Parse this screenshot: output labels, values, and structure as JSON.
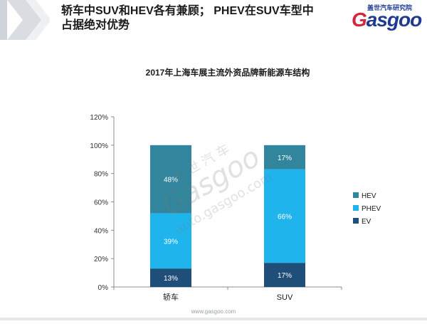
{
  "header": {
    "title": "轿车中SUV和HEV各有兼顾；  PHEV在SUV车型中占据绝对优势",
    "logo_cn": "盖世汽车研究院",
    "logo_g": "G",
    "logo_rest": "asgoo"
  },
  "watermark": {
    "cn": "盖 世 汽 车",
    "brand": "Gasgoo",
    "url": "auto.gasgoo.com"
  },
  "footer": {
    "url": "www.gasgoo.com"
  },
  "colors": {
    "hev": "#31859c",
    "phev": "#1fb4ec",
    "ev": "#1f4e79"
  },
  "chart_data": {
    "type": "bar",
    "stacked": true,
    "title": "2017年上海车展主流外资品牌新能源车结构",
    "categories": [
      "轿车",
      "SUV"
    ],
    "series": [
      {
        "name": "EV",
        "values": [
          13,
          17
        ],
        "labels": [
          "13%",
          "17%"
        ]
      },
      {
        "name": "PHEV",
        "values": [
          39,
          66
        ],
        "labels": [
          "39%",
          "66%"
        ]
      },
      {
        "name": "HEV",
        "values": [
          48,
          17
        ],
        "labels": [
          "48%",
          "17%"
        ]
      }
    ],
    "ylim": [
      0,
      120
    ],
    "yticks": [
      "0%",
      "20%",
      "40%",
      "60%",
      "80%",
      "100%",
      "120%"
    ],
    "legend": [
      "HEV",
      "PHEV",
      "EV"
    ],
    "legend_position": "right",
    "grid": false
  }
}
